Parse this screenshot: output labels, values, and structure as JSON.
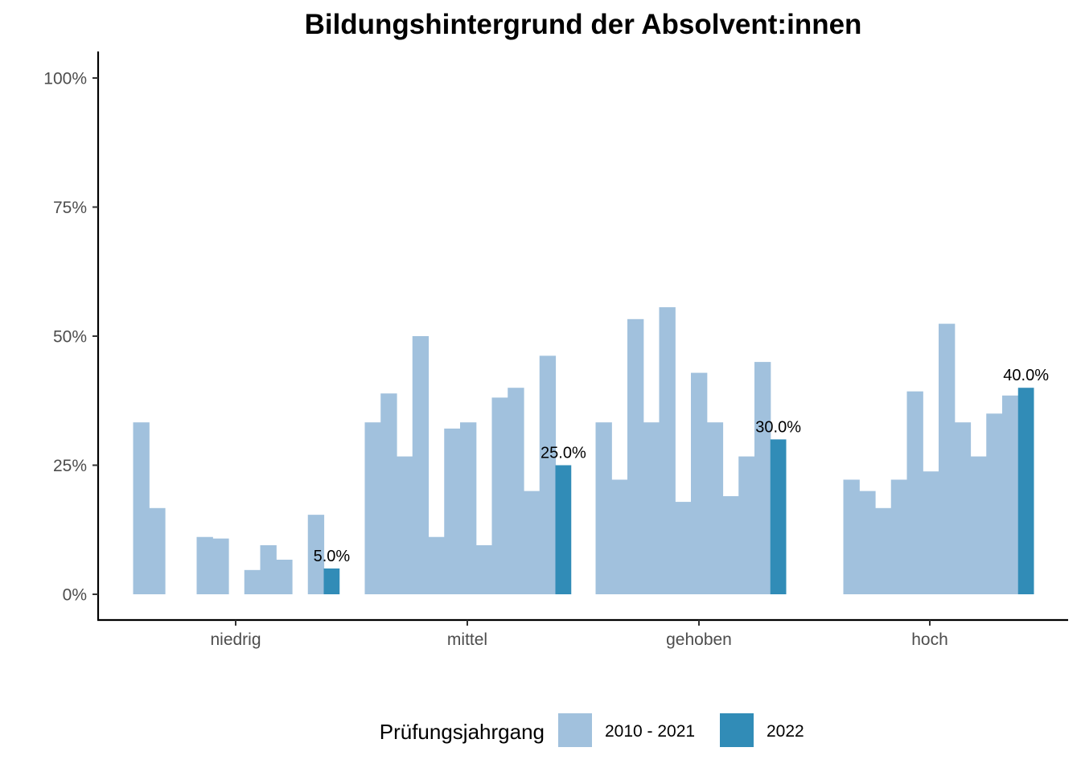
{
  "chart_data": {
    "type": "bar",
    "title": "Bildungshintergrund der Absolvent:innen",
    "xlabel": "",
    "ylabel": "",
    "ylim": [
      0,
      1.05
    ],
    "y_ticks": [
      {
        "value": 0,
        "label": "0%"
      },
      {
        "value": 0.25,
        "label": "25%"
      },
      {
        "value": 0.5,
        "label": "50%"
      },
      {
        "value": 0.75,
        "label": "75%"
      },
      {
        "value": 1.0,
        "label": "100%"
      }
    ],
    "categories": [
      "niedrig",
      "mittel",
      "gehoben",
      "hoch"
    ],
    "grid": false,
    "legend": {
      "title": "Prüfungsjahrgang",
      "position": "bottom",
      "entries": [
        {
          "label": "2010 - 2021",
          "color": "#a1c1dd"
        },
        {
          "label": "2022",
          "color": "#318cb7"
        }
      ]
    },
    "series": [
      {
        "name": "2010 - 2021",
        "color": "#a1c1dd",
        "values": [
          [
            0.333,
            0.167,
            null,
            null,
            0.111,
            0.108,
            null,
            0.047,
            0.095,
            0.067,
            null,
            0.154
          ],
          [
            0.333,
            0.389,
            0.267,
            0.5,
            0.111,
            0.321,
            0.333,
            0.095,
            0.381,
            0.4,
            0.2,
            0.462
          ],
          [
            0.333,
            0.222,
            0.533,
            0.333,
            0.556,
            0.179,
            0.429,
            0.333,
            0.19,
            0.267,
            0.45
          ],
          [
            0.222,
            0.2,
            0.167,
            0.222,
            0.393,
            0.238,
            0.524,
            0.333,
            0.267,
            0.35,
            0.385
          ]
        ]
      },
      {
        "name": "2022",
        "color": "#318cb7",
        "values": [
          0.05,
          0.25,
          0.3,
          0.4
        ],
        "labels": [
          "5.0%",
          "25.0%",
          "30.0%",
          "40.0%"
        ]
      }
    ]
  }
}
